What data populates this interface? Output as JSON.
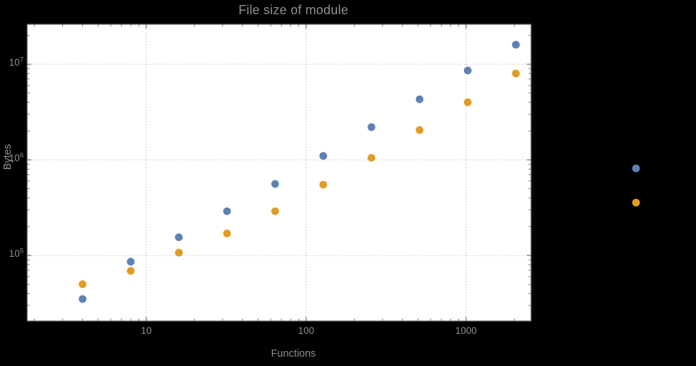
{
  "chart_data": {
    "type": "scatter",
    "title": "File size of module",
    "xlabel": "Functions",
    "ylabel": "Bytes",
    "x_scale": "log",
    "y_scale": "log",
    "grid": "dotted",
    "frame": true,
    "xlim": [
      1.8,
      2550
    ],
    "ylim": [
      20600,
      26200000
    ],
    "x_ticks": [
      {
        "value": 10,
        "label": "10"
      },
      {
        "value": 100,
        "label": "100"
      },
      {
        "value": 1000,
        "label": "1000"
      }
    ],
    "y_ticks": [
      {
        "value": 100000,
        "base": "10",
        "exp": "5"
      },
      {
        "value": 1000000,
        "base": "10",
        "exp": "6"
      },
      {
        "value": 10000000,
        "base": "10",
        "exp": "7"
      }
    ],
    "series": [
      {
        "color_name": "blue",
        "color": "#5e81b5",
        "points": [
          [
            4,
            35000
          ],
          [
            8,
            86000
          ],
          [
            16,
            155000
          ],
          [
            32,
            290000
          ],
          [
            64,
            560000
          ],
          [
            128,
            1100000
          ],
          [
            256,
            2200000
          ],
          [
            512,
            4300000
          ],
          [
            1024,
            8600000
          ],
          [
            2048,
            16000000
          ]
        ]
      },
      {
        "color_name": "orange",
        "color": "#e19c24",
        "points": [
          [
            4,
            50000
          ],
          [
            8,
            69000
          ],
          [
            16,
            107000
          ],
          [
            32,
            170000
          ],
          [
            64,
            290000
          ],
          [
            128,
            550000
          ],
          [
            256,
            1050000
          ],
          [
            512,
            2050000
          ],
          [
            1024,
            4000000
          ],
          [
            2048,
            8000000
          ]
        ]
      }
    ],
    "legend_markers": [
      {
        "color": "#5e81b5",
        "x": 891,
        "y": 236
      },
      {
        "color": "#e19c24",
        "x": 891,
        "y": 284
      }
    ],
    "colors": {
      "blue": "#5e81b5",
      "orange": "#e19c24",
      "grid": "#a6a6a6",
      "frame": "#5f5f5f",
      "text": "#8f8f8f",
      "plot_bg": "#ffffff",
      "page_bg": "#000000"
    }
  }
}
